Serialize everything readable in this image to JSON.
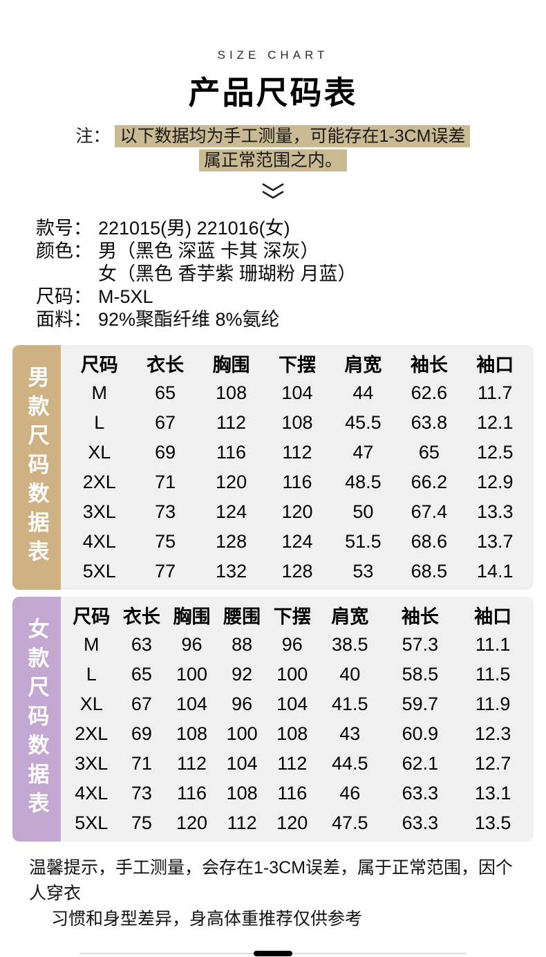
{
  "header": {
    "eyebrow": "SIZE CHART",
    "title": "产品尺码表",
    "note_prefix": "注：",
    "note_line1": "以下数据均为手工测量，可能存在1-3CM误差",
    "note_line2": "属正常范围之内。"
  },
  "product_info": {
    "rows": [
      {
        "label": "款号：",
        "value": "221015(男) 221016(女)"
      },
      {
        "label": "颜色：",
        "value": "男（黑色 深蓝 卡其 深灰）"
      },
      {
        "label": "",
        "value": "女（黑色 香芋紫 珊瑚粉 月蓝）"
      },
      {
        "label": "尺码：",
        "value": "M-5XL"
      },
      {
        "label": "面料：",
        "value": "92%聚酯纤维 8%氨纶"
      }
    ]
  },
  "men_table": {
    "side_label": "男款尺码数据表",
    "headers": [
      "尺码",
      "衣长",
      "胸围",
      "下摆",
      "肩宽",
      "袖长",
      "袖口"
    ],
    "rows": [
      [
        "M",
        "65",
        "108",
        "104",
        "44",
        "62.6",
        "11.7"
      ],
      [
        "L",
        "67",
        "112",
        "108",
        "45.5",
        "63.8",
        "12.1"
      ],
      [
        "XL",
        "69",
        "116",
        "112",
        "47",
        "65",
        "12.5"
      ],
      [
        "2XL",
        "71",
        "120",
        "116",
        "48.5",
        "66.2",
        "12.9"
      ],
      [
        "3XL",
        "73",
        "124",
        "120",
        "50",
        "67.4",
        "13.3"
      ],
      [
        "4XL",
        "75",
        "128",
        "124",
        "51.5",
        "68.6",
        "13.7"
      ],
      [
        "5XL",
        "77",
        "132",
        "128",
        "53",
        "68.5",
        "14.1"
      ]
    ]
  },
  "women_table": {
    "side_label": "女款尺码数据表",
    "headers": [
      "尺码",
      "衣长",
      "胸围",
      "腰围",
      "下摆",
      "肩宽",
      "袖长",
      "袖口"
    ],
    "rows": [
      [
        "M",
        "63",
        "96",
        "88",
        "96",
        "38.5",
        "57.3",
        "11.1"
      ],
      [
        "L",
        "65",
        "100",
        "92",
        "100",
        "40",
        "58.5",
        "11.5"
      ],
      [
        "XL",
        "67",
        "104",
        "96",
        "104",
        "41.5",
        "59.7",
        "11.9"
      ],
      [
        "2XL",
        "69",
        "108",
        "100",
        "108",
        "43",
        "60.9",
        "12.3"
      ],
      [
        "3XL",
        "71",
        "112",
        "104",
        "112",
        "44.5",
        "62.1",
        "12.7"
      ],
      [
        "4XL",
        "73",
        "116",
        "108",
        "116",
        "46",
        "63.3",
        "13.1"
      ],
      [
        "5XL",
        "75",
        "120",
        "112",
        "120",
        "47.5",
        "63.3",
        "13.5"
      ]
    ]
  },
  "footer": {
    "line1": "温馨提示，手工测量，会存在1-3CM误差，属于正常范围，因个人穿衣",
    "line2": "习惯和身型差异，身高体重推荐仅供参考"
  },
  "colors": {
    "men_label_bg": "#cfb284",
    "women_label_bg": "#c2a7d1",
    "table_bg": "#f0f0f0",
    "note_highlight": "#c9ba93"
  }
}
